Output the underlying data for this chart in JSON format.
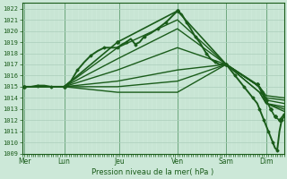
{
  "title": "Pression niveau de la mer( hPa )",
  "bg_color": "#cce8d8",
  "grid_color_major": "#aacebb",
  "grid_color_minor": "#bbddc9",
  "line_color": "#1a5c1a",
  "ylim": [
    1009,
    1022.5
  ],
  "yticks": [
    1009,
    1010,
    1011,
    1012,
    1013,
    1014,
    1015,
    1016,
    1017,
    1018,
    1019,
    1020,
    1021,
    1022
  ],
  "x_day_labels": [
    "Mer",
    "Lun",
    "Jeu",
    "Ven",
    "Sam",
    "Dim"
  ],
  "x_day_positions": [
    0.0,
    0.9,
    2.15,
    3.45,
    4.55,
    5.45
  ],
  "xlim": [
    -0.05,
    5.85
  ],
  "lines": [
    {
      "x": [
        0.0,
        0.15,
        0.3,
        0.45,
        0.6,
        0.75,
        0.9,
        1.05,
        1.2,
        1.35,
        1.5,
        1.65,
        1.8,
        1.95,
        2.1,
        2.2,
        2.3,
        2.4,
        2.5,
        2.6,
        2.7,
        2.85,
        3.0,
        3.1,
        3.2,
        3.3,
        3.45,
        3.55,
        3.65,
        3.75,
        3.85,
        3.95,
        4.1,
        4.2,
        4.3,
        4.4,
        4.55,
        4.65,
        4.75,
        4.85,
        4.95,
        5.05,
        5.15,
        5.25,
        5.3,
        5.35,
        5.4,
        5.45,
        5.5,
        5.55,
        5.6,
        5.65,
        5.7,
        5.75,
        5.8,
        5.85
      ],
      "y": [
        1015.0,
        1015.0,
        1015.1,
        1015.1,
        1015.0,
        1015.0,
        1015.0,
        1015.5,
        1016.5,
        1017.2,
        1017.8,
        1018.2,
        1018.5,
        1018.5,
        1018.5,
        1018.8,
        1019.0,
        1019.3,
        1018.8,
        1019.0,
        1019.5,
        1019.8,
        1020.2,
        1020.5,
        1020.8,
        1021.2,
        1021.8,
        1021.5,
        1020.8,
        1020.2,
        1019.5,
        1019.0,
        1018.0,
        1017.5,
        1017.2,
        1017.0,
        1017.0,
        1016.5,
        1016.0,
        1015.5,
        1015.0,
        1014.5,
        1014.0,
        1013.5,
        1013.0,
        1012.5,
        1012.0,
        1011.5,
        1011.0,
        1010.5,
        1010.0,
        1009.5,
        1009.3,
        1011.0,
        1012.0,
        1012.3
      ],
      "lw": 1.4,
      "marker": "D",
      "ms": 1.5,
      "markevery": 2
    },
    {
      "x": [
        0.0,
        0.9,
        2.1,
        3.45,
        4.55,
        5.25,
        5.35,
        5.45,
        5.55,
        5.65,
        5.75,
        5.85
      ],
      "y": [
        1015.0,
        1015.0,
        1019.0,
        1021.8,
        1017.0,
        1015.2,
        1014.5,
        1013.8,
        1013.0,
        1012.3,
        1012.0,
        1012.5
      ],
      "lw": 1.2,
      "marker": "D",
      "ms": 2.0,
      "markevery": 1
    },
    {
      "x": [
        0.0,
        0.9,
        2.1,
        3.45,
        4.55,
        5.3,
        5.45,
        5.85
      ],
      "y": [
        1015.0,
        1015.0,
        1018.5,
        1021.0,
        1017.0,
        1014.5,
        1013.5,
        1012.8
      ],
      "lw": 1.0,
      "marker": null,
      "ms": 0
    },
    {
      "x": [
        0.0,
        0.9,
        2.1,
        3.45,
        4.55,
        5.3,
        5.45,
        5.85
      ],
      "y": [
        1015.0,
        1015.0,
        1017.5,
        1020.2,
        1017.0,
        1014.5,
        1013.5,
        1013.0
      ],
      "lw": 1.0,
      "marker": null,
      "ms": 0
    },
    {
      "x": [
        0.0,
        0.9,
        2.1,
        3.45,
        4.55,
        5.3,
        5.45,
        5.85
      ],
      "y": [
        1015.0,
        1015.0,
        1016.5,
        1018.5,
        1017.0,
        1015.0,
        1013.5,
        1013.2
      ],
      "lw": 1.0,
      "marker": null,
      "ms": 0
    },
    {
      "x": [
        0.0,
        0.9,
        2.1,
        3.45,
        4.55,
        5.3,
        5.45,
        5.85
      ],
      "y": [
        1015.0,
        1015.0,
        1015.5,
        1016.5,
        1017.0,
        1015.0,
        1013.8,
        1013.5
      ],
      "lw": 1.0,
      "marker": null,
      "ms": 0
    },
    {
      "x": [
        0.0,
        0.9,
        2.1,
        3.45,
        4.55,
        5.3,
        5.45,
        5.85
      ],
      "y": [
        1015.0,
        1015.0,
        1015.0,
        1015.5,
        1017.0,
        1015.0,
        1014.0,
        1013.8
      ],
      "lw": 1.0,
      "marker": null,
      "ms": 0
    },
    {
      "x": [
        0.0,
        0.9,
        2.1,
        3.45,
        4.55,
        5.3,
        5.45,
        5.85
      ],
      "y": [
        1015.0,
        1015.0,
        1014.5,
        1014.5,
        1017.0,
        1015.0,
        1014.2,
        1014.0
      ],
      "lw": 1.0,
      "marker": null,
      "ms": 0
    }
  ],
  "vline_x": [
    0.0,
    0.9,
    2.15,
    3.45,
    4.55,
    5.45
  ],
  "vline_color": "#5a9a6a"
}
